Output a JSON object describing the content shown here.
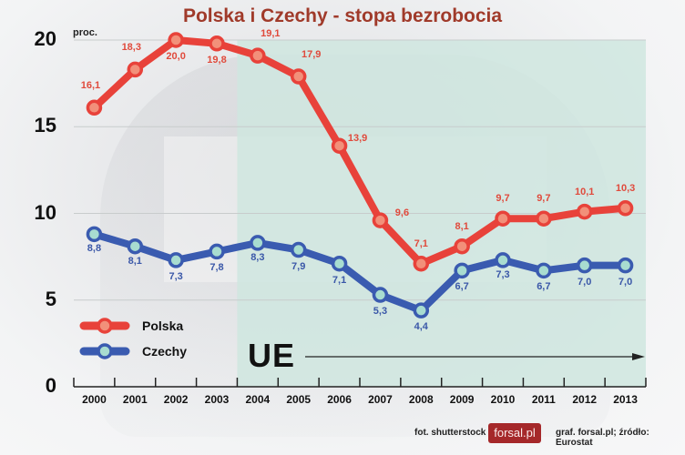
{
  "title": "Polska i Czechy - stopa bezrobocia",
  "y_unit": "proc.",
  "y_ticks": [
    "20",
    "15",
    "10",
    "5",
    "0"
  ],
  "x_ticks": [
    "2000",
    "2001",
    "2002",
    "2003",
    "2004",
    "2005",
    "2006",
    "2007",
    "2008",
    "2009",
    "2010",
    "2011",
    "2012",
    "2013"
  ],
  "legend": {
    "polska": "Polska",
    "czechy": "Czechy"
  },
  "annotation": {
    "label": "UE",
    "start_year": "2004"
  },
  "footer": {
    "photo": "fot. shutterstock",
    "brand": "forsal.pl",
    "source": "graf. forsal.pl;  źródło: Eurostat"
  },
  "colors": {
    "polska": "#e8423a",
    "polska_marker": "#f2907a",
    "czechy": "#3a5bb0",
    "czechy_marker": "#a8dcd0",
    "eu_region": "#cfe6df",
    "title": "#a03a2a",
    "brand_bg": "#a5282a"
  },
  "labels": {
    "polska": [
      "16,1",
      "18,3",
      "20,0",
      "19,8",
      "19,1",
      "17,9",
      "13,9",
      "9,6",
      "7,1",
      "8,1",
      "9,7",
      "9,7",
      "10,1",
      "10,3"
    ],
    "czechy": [
      "8,8",
      "8,1",
      "7,3",
      "7,8",
      "8,3",
      "7,9",
      "7,1",
      "5,3",
      "4,4",
      "6,7",
      "7,3",
      "6,7",
      "7,0",
      "7,0"
    ]
  },
  "chart_data": {
    "type": "line",
    "title": "Polska i Czechy - stopa bezrobocia",
    "xlabel": "",
    "ylabel": "proc.",
    "ylim": [
      0,
      20
    ],
    "yticks": [
      0,
      5,
      10,
      15,
      20
    ],
    "grid": true,
    "legend_position": "lower-left",
    "x": [
      2000,
      2001,
      2002,
      2003,
      2004,
      2005,
      2006,
      2007,
      2008,
      2009,
      2010,
      2011,
      2012,
      2013
    ],
    "series": [
      {
        "name": "Polska",
        "values": [
          16.1,
          18.3,
          20.0,
          19.8,
          19.1,
          17.9,
          13.9,
          9.6,
          7.1,
          8.1,
          9.7,
          9.7,
          10.1,
          10.3
        ]
      },
      {
        "name": "Czechy",
        "values": [
          8.8,
          8.1,
          7.3,
          7.8,
          8.3,
          7.9,
          7.1,
          5.3,
          4.4,
          6.7,
          7.3,
          6.7,
          7.0,
          7.0
        ]
      }
    ],
    "annotations": [
      {
        "text": "UE",
        "type": "shaded-region-with-arrow",
        "from": 2004,
        "to": 2013
      }
    ],
    "source": "graf. forsal.pl; źródło: Eurostat"
  }
}
